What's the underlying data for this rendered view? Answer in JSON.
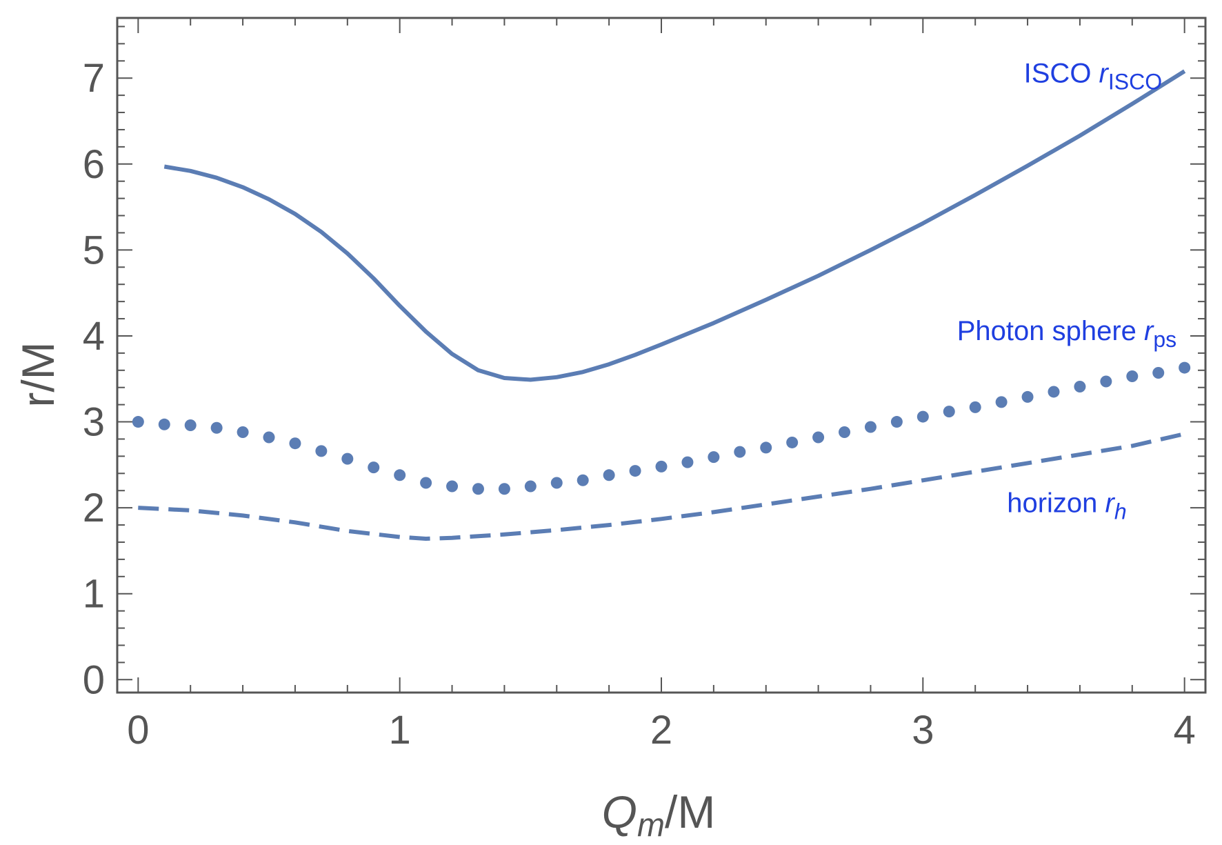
{
  "chart_data": {
    "type": "line",
    "title": "",
    "xlabel": {
      "main": "Q",
      "sub": "m",
      "suffix": "/M"
    },
    "ylabel": "r/M",
    "xlim": [
      -0.08,
      4.08
    ],
    "ylim": [
      -0.15,
      7.7
    ],
    "xticks": [
      0,
      1,
      2,
      3,
      4
    ],
    "xtick_labels": [
      "0",
      "1",
      "2",
      "3",
      "4"
    ],
    "yticks": [
      0,
      1,
      2,
      3,
      4,
      5,
      6,
      7
    ],
    "ytick_labels": [
      "0",
      "1",
      "2",
      "3",
      "4",
      "5",
      "6",
      "7"
    ],
    "x_minor_step": 0.2,
    "y_minor_step": 0.2,
    "grid": false,
    "colors": {
      "series": "#5b7db4",
      "annotation": "#1f3fe0",
      "frame": "#555555",
      "text": "#555555"
    },
    "series": [
      {
        "name": "ISCO",
        "style": "solid",
        "x": [
          0.1,
          0.2,
          0.3,
          0.4,
          0.5,
          0.6,
          0.7,
          0.8,
          0.9,
          1.0,
          1.1,
          1.2,
          1.3,
          1.4,
          1.5,
          1.6,
          1.7,
          1.8,
          1.9,
          2.0,
          2.2,
          2.4,
          2.6,
          2.8,
          3.0,
          3.2,
          3.4,
          3.6,
          3.8,
          4.0
        ],
        "values": [
          5.97,
          5.92,
          5.84,
          5.73,
          5.59,
          5.42,
          5.21,
          4.96,
          4.67,
          4.35,
          4.05,
          3.79,
          3.6,
          3.51,
          3.49,
          3.52,
          3.58,
          3.67,
          3.78,
          3.9,
          4.15,
          4.42,
          4.7,
          5.0,
          5.31,
          5.64,
          5.98,
          6.33,
          6.7,
          7.08
        ]
      },
      {
        "name": "Photon sphere",
        "style": "dotted",
        "x": [
          0.0,
          0.1,
          0.2,
          0.3,
          0.4,
          0.5,
          0.6,
          0.7,
          0.8,
          0.9,
          1.0,
          1.1,
          1.2,
          1.3,
          1.4,
          1.5,
          1.6,
          1.7,
          1.8,
          1.9,
          2.0,
          2.1,
          2.2,
          2.3,
          2.4,
          2.5,
          2.6,
          2.7,
          2.8,
          2.9,
          3.0,
          3.1,
          3.2,
          3.3,
          3.4,
          3.5,
          3.6,
          3.7,
          3.8,
          3.9,
          4.0
        ],
        "values": [
          3.0,
          2.97,
          2.96,
          2.93,
          2.88,
          2.82,
          2.75,
          2.66,
          2.57,
          2.47,
          2.38,
          2.29,
          2.25,
          2.22,
          2.22,
          2.25,
          2.29,
          2.32,
          2.38,
          2.43,
          2.48,
          2.53,
          2.59,
          2.65,
          2.7,
          2.76,
          2.82,
          2.88,
          2.94,
          3.0,
          3.06,
          3.12,
          3.17,
          3.23,
          3.29,
          3.35,
          3.41,
          3.47,
          3.53,
          3.57,
          3.63
        ]
      },
      {
        "name": "horizon",
        "style": "dashed",
        "x": [
          0.0,
          0.2,
          0.4,
          0.6,
          0.8,
          1.0,
          1.1,
          1.2,
          1.4,
          1.6,
          1.8,
          2.0,
          2.2,
          2.4,
          2.6,
          2.8,
          3.0,
          3.2,
          3.4,
          3.6,
          3.8,
          4.0
        ],
        "values": [
          2.0,
          1.97,
          1.91,
          1.83,
          1.73,
          1.66,
          1.64,
          1.65,
          1.69,
          1.74,
          1.8,
          1.87,
          1.95,
          2.04,
          2.13,
          2.22,
          2.32,
          2.42,
          2.52,
          2.62,
          2.72,
          2.86
        ]
      }
    ],
    "annotations": [
      {
        "series": "ISCO",
        "text": "ISCO ",
        "var": "r",
        "sub": "ISCO",
        "x": 3.65,
        "y": 6.95
      },
      {
        "series": "Photon sphere",
        "text": "Photon sphere ",
        "var": "r",
        "sub": "ps",
        "x": 3.55,
        "y": 3.95
      },
      {
        "series": "horizon",
        "text": "horizon ",
        "var": "r",
        "sub": "h",
        "x": 3.55,
        "y": 1.95
      }
    ]
  }
}
